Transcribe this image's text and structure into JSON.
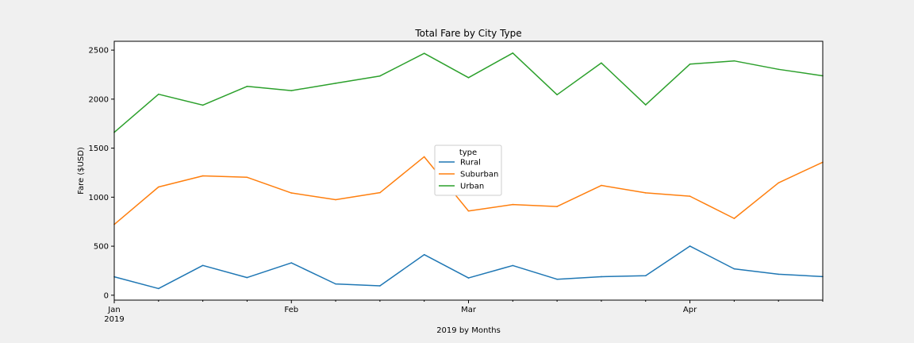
{
  "chart_data": {
    "type": "line",
    "title": "Total Fare by City Type",
    "xlabel": "2019 by Months",
    "ylabel": "Fare ($USD)",
    "x": [
      "2019-01-06",
      "2019-01-13",
      "2019-01-20",
      "2019-01-27",
      "2019-02-03",
      "2019-02-10",
      "2019-02-17",
      "2019-02-24",
      "2019-03-03",
      "2019-03-10",
      "2019-03-17",
      "2019-03-24",
      "2019-03-31",
      "2019-04-07",
      "2019-04-14",
      "2019-04-21",
      "2019-04-28"
    ],
    "x_ticks": [
      {
        "date": "2019-01-06",
        "label": "Jan",
        "sublabel": "2019"
      },
      {
        "date": "2019-02-03",
        "label": "Feb",
        "sublabel": ""
      },
      {
        "date": "2019-03-03",
        "label": "Mar",
        "sublabel": ""
      },
      {
        "date": "2019-04-07",
        "label": "Apr",
        "sublabel": ""
      }
    ],
    "y_ticks": [
      0,
      500,
      1000,
      1500,
      2000,
      2500
    ],
    "ylim": [
      -50,
      2590
    ],
    "grid": false,
    "legend": {
      "title": "type",
      "placement": "center"
    },
    "series": [
      {
        "name": "Rural",
        "color": "#1f77b4",
        "values": [
          188,
          68,
          304,
          180,
          330,
          115,
          96,
          414,
          176,
          303,
          163,
          189,
          199,
          501,
          269,
          214,
          190
        ]
      },
      {
        "name": "Suburban",
        "color": "#ff7f0e",
        "values": [
          722,
          1104,
          1217,
          1203,
          1043,
          974,
          1046,
          1412,
          859,
          925,
          905,
          1120,
          1044,
          1010,
          783,
          1146,
          1357
        ]
      },
      {
        "name": "Urban",
        "color": "#2ca02c",
        "values": [
          1661,
          2050,
          1939,
          2130,
          2087,
          2162,
          2236,
          2467,
          2219,
          2470,
          2045,
          2369,
          1942,
          2357,
          2390,
          2304,
          2238
        ]
      }
    ]
  }
}
